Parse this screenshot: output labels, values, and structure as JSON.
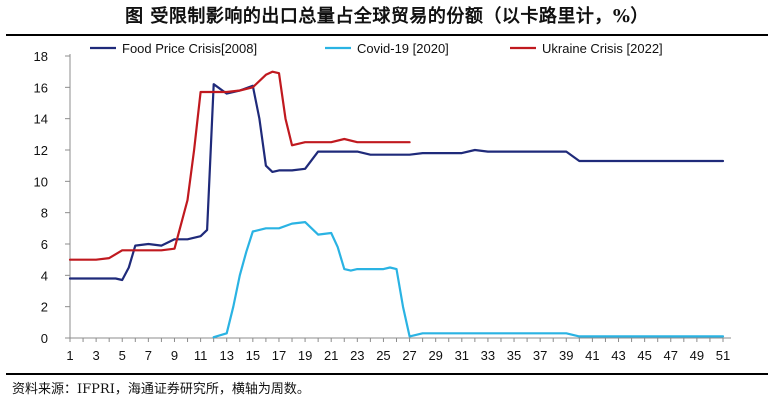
{
  "title": "图 受限制影响的出口总量占全球贸易的份额（以卡路里计，%）",
  "source": "资料来源：IFPRI，海通证券研究所，横轴为周数。",
  "chart_data": {
    "type": "line",
    "title": "图 受限制影响的出口总量占全球贸易的份额（以卡路里计，%）",
    "xlabel": "",
    "ylabel": "",
    "xlim": [
      1,
      51
    ],
    "ylim": [
      0,
      18
    ],
    "x_ticks": [
      1,
      3,
      5,
      7,
      9,
      11,
      13,
      15,
      17,
      19,
      21,
      23,
      25,
      27,
      29,
      31,
      33,
      35,
      37,
      39,
      41,
      43,
      45,
      47,
      49,
      51
    ],
    "y_ticks": [
      0,
      2,
      4,
      6,
      8,
      10,
      12,
      14,
      16,
      18
    ],
    "grid": false,
    "legend_position": "top",
    "series": [
      {
        "name": "Food Price Crisis[2008]",
        "color": "#1f2a7a",
        "x": [
          1,
          2,
          3,
          4,
          4.5,
          5,
          5.5,
          6,
          7,
          8,
          9,
          10,
          11,
          11.5,
          12,
          13,
          14,
          15,
          15.5,
          16,
          16.5,
          17,
          18,
          19,
          20,
          21,
          22,
          23,
          24,
          25,
          26,
          27,
          28,
          29,
          30,
          31,
          32,
          33,
          34,
          35,
          36,
          37,
          38,
          39,
          40,
          41,
          42,
          43,
          44,
          45,
          46,
          47,
          48,
          49,
          50,
          51
        ],
        "y": [
          3.8,
          3.8,
          3.8,
          3.8,
          3.8,
          3.7,
          4.5,
          5.9,
          6.0,
          5.9,
          6.3,
          6.3,
          6.5,
          6.9,
          16.2,
          15.6,
          15.8,
          16.1,
          14.0,
          11.0,
          10.6,
          10.7,
          10.7,
          10.8,
          11.9,
          11.9,
          11.9,
          11.9,
          11.7,
          11.7,
          11.7,
          11.7,
          11.8,
          11.8,
          11.8,
          11.8,
          12.0,
          11.9,
          11.9,
          11.9,
          11.9,
          11.9,
          11.9,
          11.9,
          11.3,
          11.3,
          11.3,
          11.3,
          11.3,
          11.3,
          11.3,
          11.3,
          11.3,
          11.3,
          11.3,
          11.3
        ]
      },
      {
        "name": "Covid-19 [2020]",
        "color": "#2ab3e3",
        "x": [
          12,
          13,
          13.5,
          14,
          14.5,
          15,
          16,
          17,
          18,
          19,
          20,
          21,
          21.5,
          22,
          22.5,
          23,
          24,
          25,
          25.5,
          26,
          26.5,
          27,
          28,
          29,
          30,
          31,
          32,
          33,
          34,
          35,
          36,
          37,
          38,
          39,
          40,
          41,
          42,
          43,
          44,
          45,
          46,
          47,
          48,
          49,
          50,
          51
        ],
        "y": [
          0.05,
          0.3,
          2.0,
          4.0,
          5.5,
          6.8,
          7.0,
          7.0,
          7.3,
          7.4,
          6.6,
          6.7,
          5.8,
          4.4,
          4.3,
          4.4,
          4.4,
          4.4,
          4.5,
          4.4,
          2.0,
          0.1,
          0.3,
          0.3,
          0.3,
          0.3,
          0.3,
          0.3,
          0.3,
          0.3,
          0.3,
          0.3,
          0.3,
          0.3,
          0.1,
          0.1,
          0.1,
          0.1,
          0.1,
          0.1,
          0.1,
          0.1,
          0.1,
          0.1,
          0.1,
          0.1
        ]
      },
      {
        "name": "Ukraine Crisis [2022]",
        "color": "#c0191f",
        "x": [
          1,
          2,
          3,
          4,
          5,
          6,
          7,
          8,
          9,
          10,
          10.5,
          11,
          12,
          13,
          14,
          15,
          16,
          16.5,
          17,
          17.5,
          18,
          19,
          20,
          21,
          22,
          23,
          24,
          25,
          26,
          27
        ],
        "y": [
          5.0,
          5.0,
          5.0,
          5.1,
          5.6,
          5.6,
          5.6,
          5.6,
          5.7,
          8.8,
          12.0,
          15.7,
          15.7,
          15.7,
          15.8,
          16.0,
          16.8,
          17.0,
          16.9,
          14.0,
          12.3,
          12.5,
          12.5,
          12.5,
          12.7,
          12.5,
          12.5,
          12.5,
          12.5,
          12.5
        ]
      }
    ]
  }
}
